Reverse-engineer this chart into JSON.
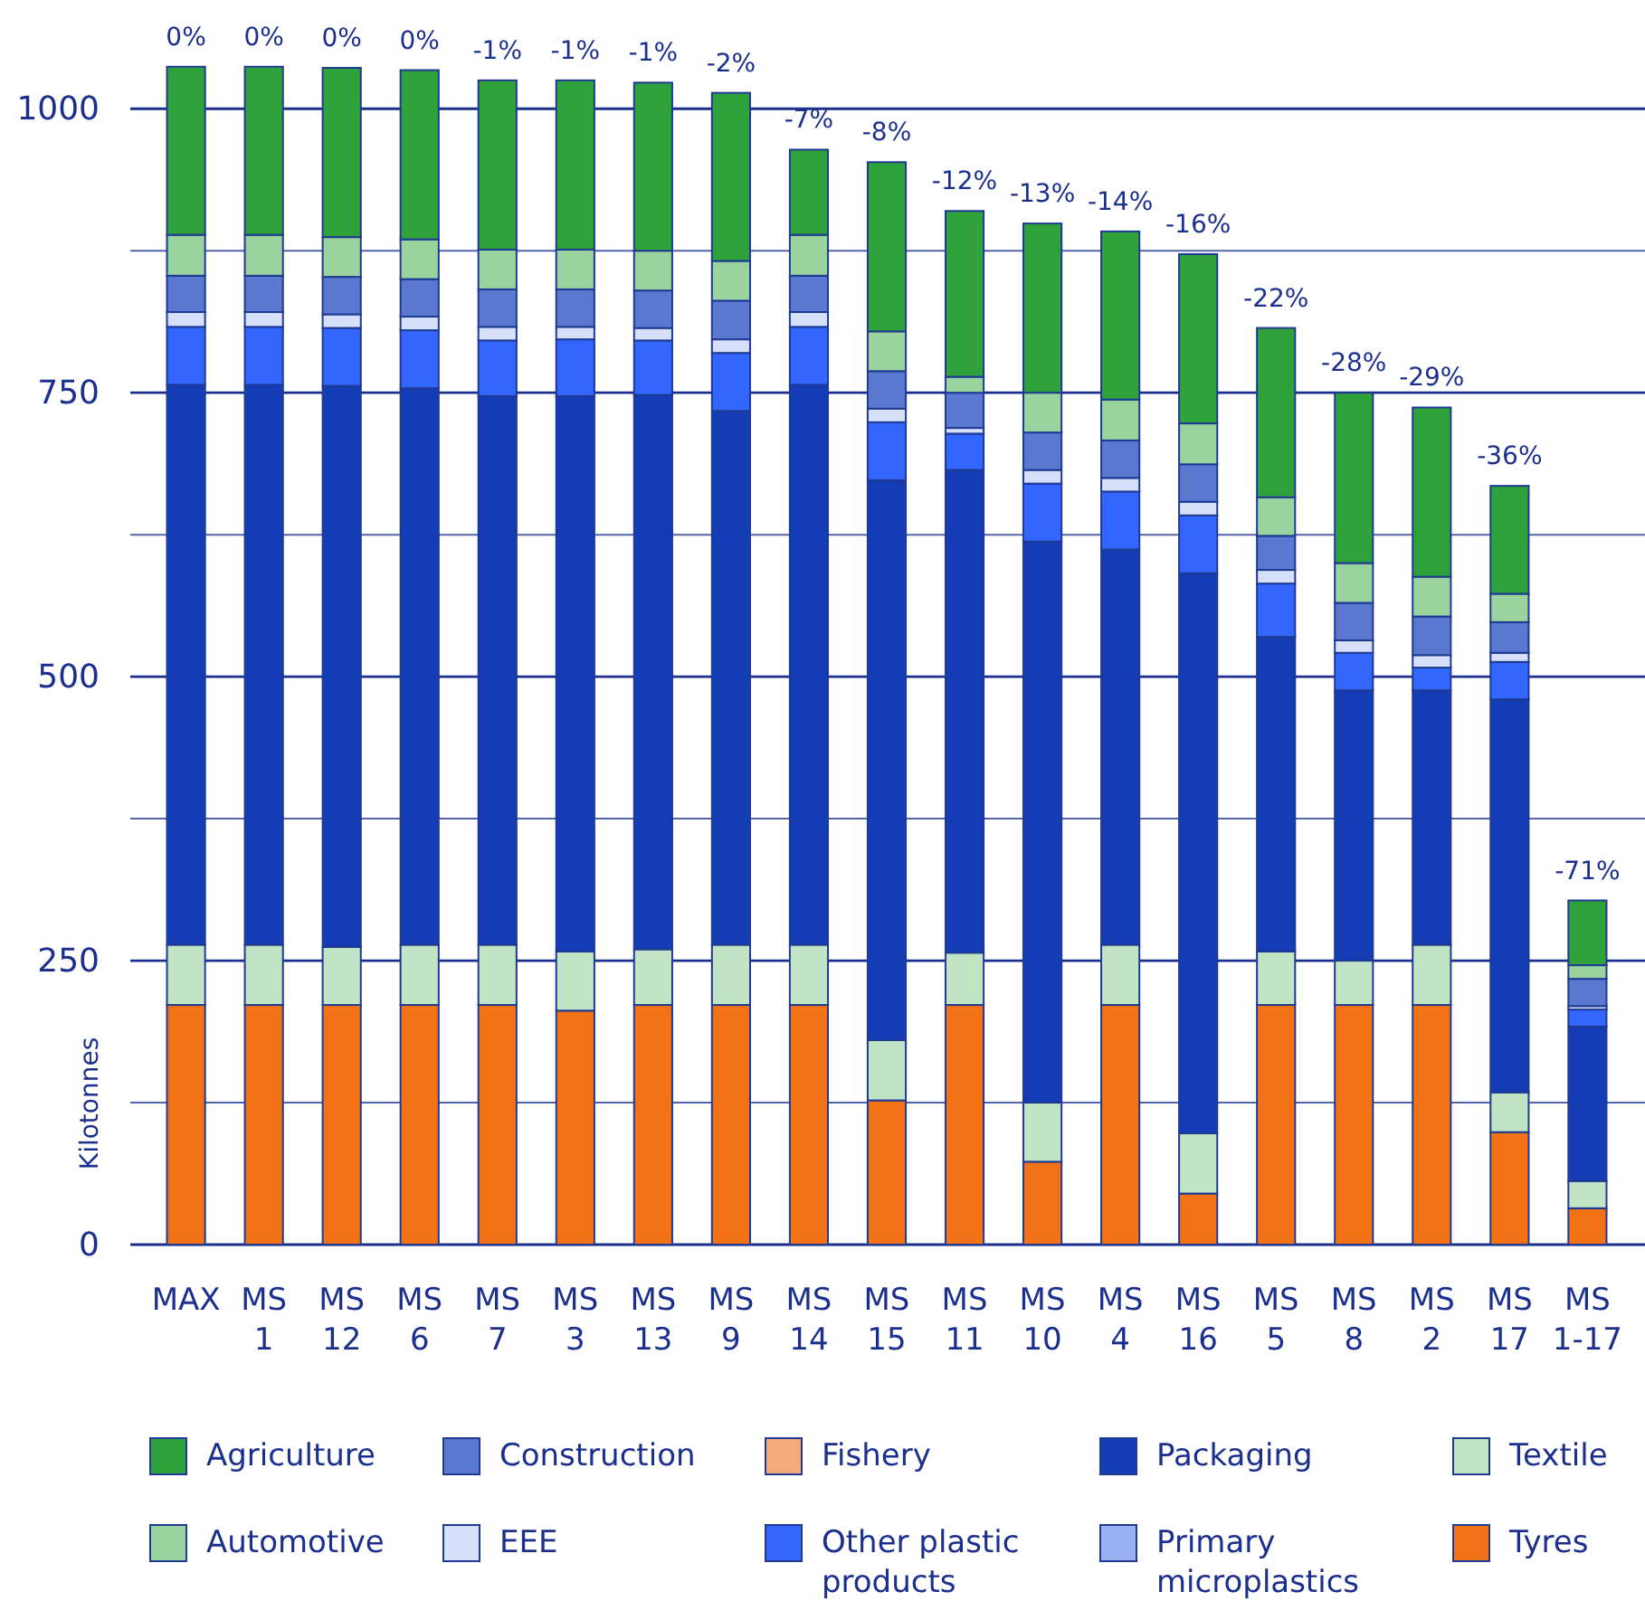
{
  "chart_data": {
    "type": "bar",
    "stacked": true,
    "ylabel": "Kilotonnes",
    "categories": [
      "MAX",
      "MS 1",
      "MS 12",
      "MS 6",
      "MS 7",
      "MS 3",
      "MS 13",
      "MS 9",
      "MS 14",
      "MS 15",
      "MS 11",
      "MS 10",
      "MS 4",
      "MS 16",
      "MS 5",
      "MS 8",
      "MS 2",
      "MS 17",
      "MS 1-17"
    ],
    "series": [
      {
        "name": "Tyres",
        "color": "#f47216",
        "values": [
          211,
          211,
          211,
          211,
          211,
          206,
          211,
          211,
          211,
          127,
          211,
          73,
          211,
          45,
          211,
          211,
          211,
          99,
          32
        ]
      },
      {
        "name": "Textile",
        "color": "#c1e4c5",
        "values": [
          53,
          53,
          51,
          53,
          53,
          52,
          49,
          53,
          53,
          53,
          46,
          52,
          53,
          53,
          47,
          39,
          53,
          35,
          24
        ]
      },
      {
        "name": "Packaging",
        "color": "#143db5",
        "values": [
          493,
          493,
          494,
          490,
          483,
          489,
          488,
          470,
          493,
          493,
          425,
          494,
          348,
          493,
          277,
          238,
          224,
          346,
          136
        ]
      },
      {
        "name": "Other plastic products",
        "color": "#3366ff",
        "values": [
          51,
          51,
          51,
          51,
          49,
          50,
          48,
          51,
          51,
          51,
          32,
          51,
          51,
          51,
          47,
          33,
          20,
          33,
          15
        ]
      },
      {
        "name": "Primary microplastics",
        "color": "#99b0f5",
        "values": [
          0,
          0,
          0,
          0,
          0,
          0,
          0,
          0,
          0,
          0,
          0,
          0,
          0,
          0,
          0,
          0,
          0,
          0,
          0
        ]
      },
      {
        "name": "EEE",
        "color": "#d6e0fa",
        "values": [
          13,
          13,
          12,
          12,
          12,
          11,
          11,
          12,
          13,
          12,
          5,
          12,
          12,
          12,
          12,
          11,
          11,
          8,
          3
        ]
      },
      {
        "name": "Construction",
        "color": "#5a78cf",
        "values": [
          32,
          32,
          33,
          33,
          33,
          33,
          33,
          34,
          32,
          33,
          31,
          33,
          33,
          33,
          30,
          33,
          34,
          27,
          24
        ]
      },
      {
        "name": "Fishery",
        "color": "#f6a97c",
        "values": [
          0,
          0,
          0,
          0,
          0,
          0,
          0,
          0,
          0,
          0,
          0,
          0,
          0,
          0,
          0,
          0,
          0,
          0,
          0
        ]
      },
      {
        "name": "Automotive",
        "color": "#99d39d",
        "values": [
          36,
          36,
          35,
          35,
          35,
          35,
          35,
          35,
          36,
          35,
          14,
          35,
          36,
          36,
          34,
          35,
          35,
          25,
          12
        ]
      },
      {
        "name": "Agriculture",
        "color": "#2fa23b",
        "values": [
          148,
          148,
          149,
          149,
          149,
          149,
          148,
          148,
          75,
          149,
          146,
          149,
          148,
          149,
          149,
          150,
          149,
          95,
          57
        ]
      }
    ],
    "ylim": [
      0,
      1040
    ],
    "yticks": [
      0,
      {
        "value": 125,
        "label": null
      },
      250,
      {
        "value": 375,
        "label": null
      },
      500,
      {
        "value": 625,
        "label": null
      },
      750,
      {
        "value": 875,
        "label": null
      },
      1000
    ],
    "grid": "y",
    "legend": "bottom",
    "annotations": [
      {
        "text": "0%",
        "x": "MAX",
        "y": 1037
      },
      {
        "text": "0%",
        "x": "MS 1",
        "y": 1037
      },
      {
        "text": "0%",
        "x": "MS 12",
        "y": 1036
      },
      {
        "text": "0%",
        "x": "MS 6",
        "y": 1034
      },
      {
        "text": "-1%",
        "x": "MS 7",
        "y": 1025
      },
      {
        "text": "-1%",
        "x": "MS 3",
        "y": 1025
      },
      {
        "text": "-1%",
        "x": "MS 13",
        "y": 1023
      },
      {
        "text": "-2%",
        "x": "MS 9",
        "y": 1014
      },
      {
        "text": "-7%",
        "x": "MS 14",
        "y": 964
      },
      {
        "text": "-8%",
        "x": "MS 15",
        "y": 953
      },
      {
        "text": "-12%",
        "x": "MS 11",
        "y": 910
      },
      {
        "text": "-13%",
        "x": "MS 10",
        "y": 899
      },
      {
        "text": "-14%",
        "x": "MS 4",
        "y": 892
      },
      {
        "text": "-16%",
        "x": "MS 16",
        "y": 872
      },
      {
        "text": "-22%",
        "x": "MS 5",
        "y": 807
      },
      {
        "text": "-28%",
        "x": "MS 8",
        "y": 750
      },
      {
        "text": "-29%",
        "x": "MS 2",
        "y": 737
      },
      {
        "text": "-36%",
        "x": "MS 17",
        "y": 668
      },
      {
        "text": "-71%",
        "x": "MS 1-17",
        "y": 303
      }
    ]
  }
}
